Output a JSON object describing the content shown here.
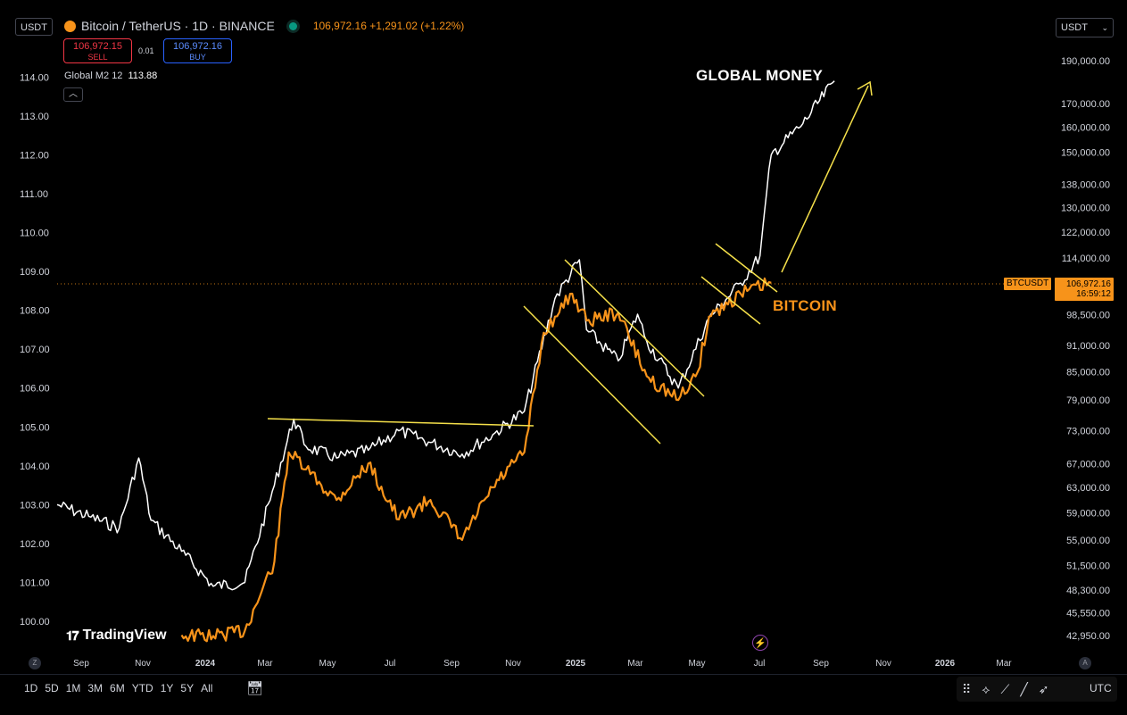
{
  "header": {
    "symbol_box": "USDT",
    "title": "Bitcoin / TetherUS · 1D · BINANCE",
    "last_price": "106,972.16",
    "change": "+1,291.02 (+1.22%)",
    "sell_price": "106,972.15",
    "sell_label": "SELL",
    "spread": "0.01",
    "buy_price": "106,972.16",
    "buy_label": "BUY",
    "indicator_name": "Global M2 12",
    "indicator_value": "113.88",
    "collapse_icon": "chevron-up-icon",
    "currency_select": "USDT"
  },
  "price_tag": {
    "symbol": "BTCUSDT",
    "price": "106,972.16",
    "countdown": "16:59:12"
  },
  "annotations": {
    "global_money": "GLOBAL MONEY",
    "bitcoin": "BITCOIN"
  },
  "watermark": "TradingView",
  "axis_toggles": {
    "left": "Z",
    "right": "A"
  },
  "bottom_toolbar": {
    "ranges": [
      "1D",
      "5D",
      "1M",
      "3M",
      "6M",
      "YTD",
      "1Y",
      "5Y",
      "All"
    ],
    "date_range_icon": "calendar-icon",
    "tool_icons": [
      "grip-icon",
      "pattern-icon",
      "line-tool-icon",
      "trend-line-icon",
      "cursor-icon"
    ],
    "timezone": "UTC"
  },
  "colors": {
    "btc_line": "#f7931a",
    "m2_line": "#ffffff",
    "trend_lines": "#f5e04a",
    "price_line": "#f7931a",
    "sell": "#f23645",
    "buy": "#2962ff"
  },
  "chart_data": {
    "type": "line",
    "x_ticks": [
      "Sep",
      "Nov",
      "2024",
      "Mar",
      "May",
      "Jul",
      "Sep",
      "Nov",
      "2025",
      "Mar",
      "May",
      "Jul",
      "Sep",
      "Nov",
      "2026",
      "Mar"
    ],
    "left_axis_ticks": [
      "100.00",
      "101.00",
      "102.00",
      "103.00",
      "104.00",
      "105.00",
      "106.00",
      "107.00",
      "108.00",
      "109.00",
      "110.00",
      "111.00",
      "112.00",
      "113.00",
      "114.00"
    ],
    "right_axis_ticks": [
      "42,950.00",
      "45,550.00",
      "48,300.00",
      "51,500.00",
      "55,000.00",
      "59,000.00",
      "63,000.00",
      "67,000.00",
      "73,000.00",
      "79,000.00",
      "85,000.00",
      "91,000.00",
      "98,500.00",
      "114,000.00",
      "122,000.00",
      "130,000.00",
      "138,000.00",
      "150,000.00",
      "160,000.00",
      "170,000.00",
      "190,000.00"
    ],
    "right_scale": "log",
    "series": [
      {
        "name": "Global M2 12",
        "axis": "left",
        "x": [
          "2023-08",
          "2023-09",
          "2023-10",
          "2023-10-20",
          "2023-11",
          "2023-12",
          "2024-01",
          "2024-02",
          "2024-03",
          "2024-03-20",
          "2024-04",
          "2024-05",
          "2024-06",
          "2024-07",
          "2024-08",
          "2024-09",
          "2024-10",
          "2024-11",
          "2024-12",
          "2024-12-25",
          "2025-01",
          "2025-02",
          "2025-02-20",
          "2025-03",
          "2025-04",
          "2025-05",
          "2025-06",
          "2025-06-20",
          "2025-07",
          "2025-08",
          "2025-09"
        ],
        "values": [
          103.0,
          102.7,
          102.4,
          104.2,
          102.6,
          101.8,
          100.9,
          101.0,
          103.5,
          105.2,
          104.5,
          104.2,
          104.4,
          104.9,
          104.6,
          104.3,
          104.8,
          105.4,
          108.3,
          109.3,
          107.5,
          106.7,
          107.9,
          107.2,
          106.0,
          107.8,
          108.7,
          109.4,
          112.0,
          112.8,
          113.9
        ]
      },
      {
        "name": "BTCUSDT",
        "axis": "right",
        "x": [
          "2023-12",
          "2024-01",
          "2024-02",
          "2024-03",
          "2024-03-15",
          "2024-04",
          "2024-05",
          "2024-06",
          "2024-07",
          "2024-08",
          "2024-09",
          "2024-10",
          "2024-11",
          "2024-11-20",
          "2024-12",
          "2024-12-18",
          "2025-01",
          "2025-02",
          "2025-03",
          "2025-04",
          "2025-04-20",
          "2025-05",
          "2025-06",
          "2025-07"
        ],
        "values": [
          43000,
          42900,
          43500,
          52000,
          69000,
          66000,
          61000,
          67000,
          58000,
          61000,
          55000,
          63000,
          69000,
          94000,
          98000,
          104000,
          97000,
          99000,
          84000,
          79000,
          85000,
          98000,
          104000,
          106972
        ]
      }
    ],
    "reference_lines": [
      {
        "value": 106972.16,
        "axis": "right",
        "style": "dotted"
      }
    ]
  }
}
